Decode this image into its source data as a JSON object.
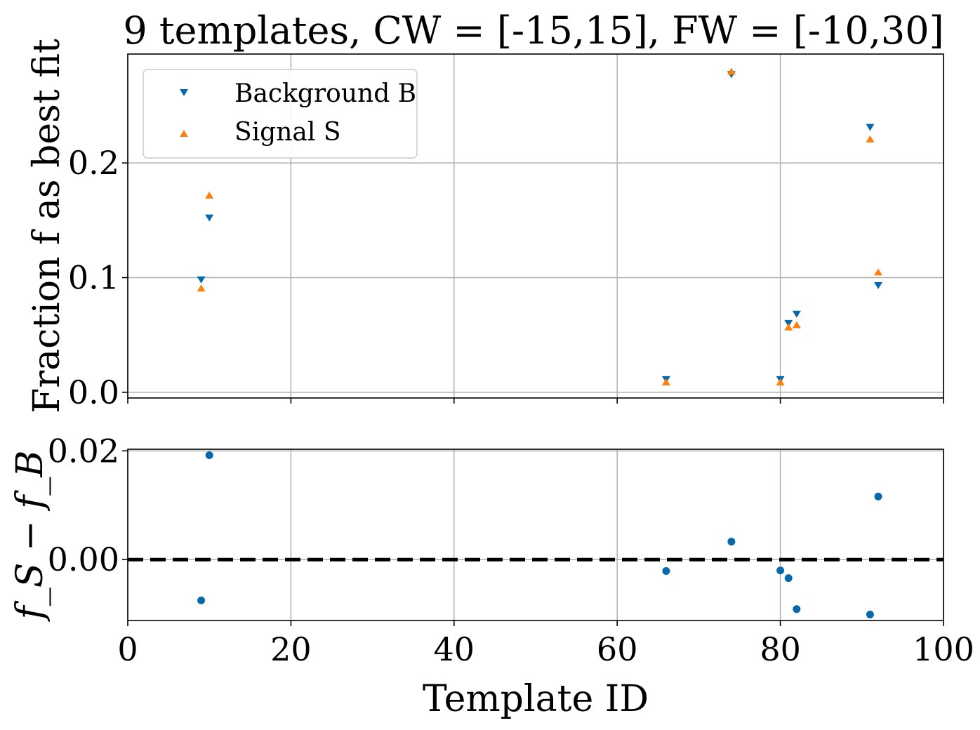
{
  "chart_data": [
    {
      "panel": "top",
      "type": "scatter",
      "title": "9 templates, CW = [-15,15], FW = [-10,30]",
      "xlabel": "",
      "ylabel": "Fraction f as best fit",
      "xlim": [
        0,
        100
      ],
      "ylim": [
        -0.005,
        0.295
      ],
      "yticks": [
        0.0,
        0.1,
        0.2
      ],
      "ytick_labels": [
        "0.0",
        "0.1",
        "0.2"
      ],
      "xticks": [
        0,
        20,
        40,
        60,
        80,
        100
      ],
      "grid": true,
      "legend_position": "top-left",
      "series": [
        {
          "name": "Background B",
          "marker": "triangle-down",
          "color": "#0868ac",
          "x": [
            9,
            10,
            66,
            74,
            80,
            81,
            82,
            91,
            92
          ],
          "y": [
            0.098,
            0.152,
            0.011,
            0.277,
            0.011,
            0.06,
            0.068,
            0.231,
            0.093
          ]
        },
        {
          "name": "Signal S",
          "marker": "triangle-up",
          "color": "#ff7f0e",
          "x": [
            9,
            10,
            66,
            74,
            80,
            81,
            82,
            91,
            92
          ],
          "y": [
            0.091,
            0.172,
            0.009,
            0.28,
            0.009,
            0.057,
            0.059,
            0.221,
            0.105
          ]
        }
      ]
    },
    {
      "panel": "bottom",
      "type": "scatter",
      "xlabel": "Template ID",
      "ylabel": "f_S − f_B",
      "xlim": [
        0,
        100
      ],
      "ylim": [
        -0.0112,
        0.0203
      ],
      "yticks": [
        0.0,
        0.02
      ],
      "ytick_labels": [
        "0.00",
        "0.02"
      ],
      "xticks": [
        0,
        20,
        40,
        60,
        80,
        100
      ],
      "xtick_labels": [
        "0",
        "20",
        "40",
        "60",
        "80",
        "100"
      ],
      "grid": true,
      "reference_line": {
        "y": 0.0,
        "style": "dashed",
        "color": "#000000"
      },
      "series": [
        {
          "marker": "circle",
          "color": "#0868ac",
          "x": [
            9,
            10,
            66,
            74,
            80,
            81,
            82,
            91,
            92
          ],
          "y": [
            -0.0075,
            0.0192,
            -0.0021,
            0.0033,
            -0.002,
            -0.0034,
            -0.0091,
            -0.0101,
            0.0116
          ]
        }
      ]
    }
  ]
}
